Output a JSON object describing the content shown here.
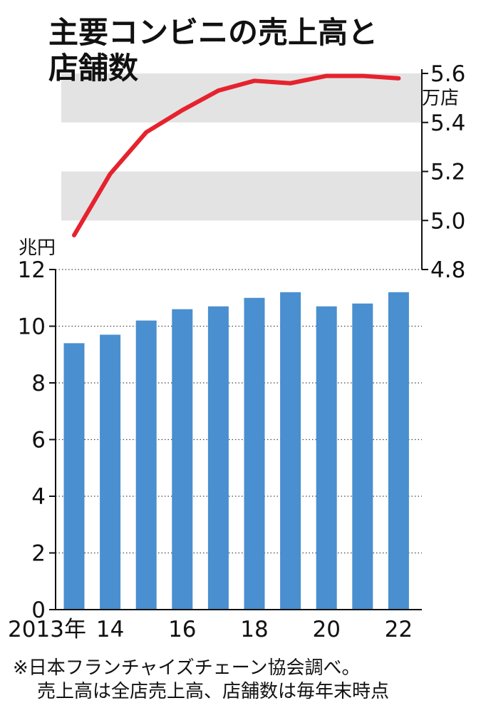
{
  "title_line1": "主要コンビニの売上高と",
  "title_line2": "店舗数",
  "colors": {
    "bar": "#4a8fcf",
    "line": "#e5232e",
    "band": "#e3e3e3",
    "text": "#111111"
  },
  "chart_data": {
    "type": "bar+line",
    "title": "主要コンビニの売上高と店舗数",
    "x_tick_labels": [
      "2013年",
      "14",
      "16",
      "18",
      "20",
      "22"
    ],
    "x": [
      2013,
      2014,
      2015,
      2016,
      2017,
      2018,
      2019,
      2020,
      2021,
      2022
    ],
    "bar": {
      "unit": "兆円",
      "values": [
        9.4,
        9.7,
        10.2,
        10.6,
        10.7,
        11.0,
        11.2,
        10.7,
        10.8,
        11.2
      ],
      "ylim": [
        0,
        12
      ],
      "ticks": [
        "0",
        "2",
        "4",
        "6",
        "8",
        "10",
        "12"
      ],
      "grid": "dotted"
    },
    "line": {
      "unit": "万店",
      "values": [
        4.94,
        5.19,
        5.36,
        5.45,
        5.53,
        5.57,
        5.56,
        5.59,
        5.59,
        5.58
      ],
      "ylim": [
        4.8,
        5.6
      ],
      "ticks": [
        "4.8",
        "5.0",
        "5.2",
        "5.4",
        "5.6"
      ],
      "bands": [
        [
          5.0,
          5.2
        ],
        [
          5.4,
          5.6
        ]
      ],
      "axis_position": "right"
    }
  },
  "notes": [
    "※日本フランチャイズチェーン協会調べ。",
    "売上高は全店売上高、店舗数は毎年末時点"
  ]
}
